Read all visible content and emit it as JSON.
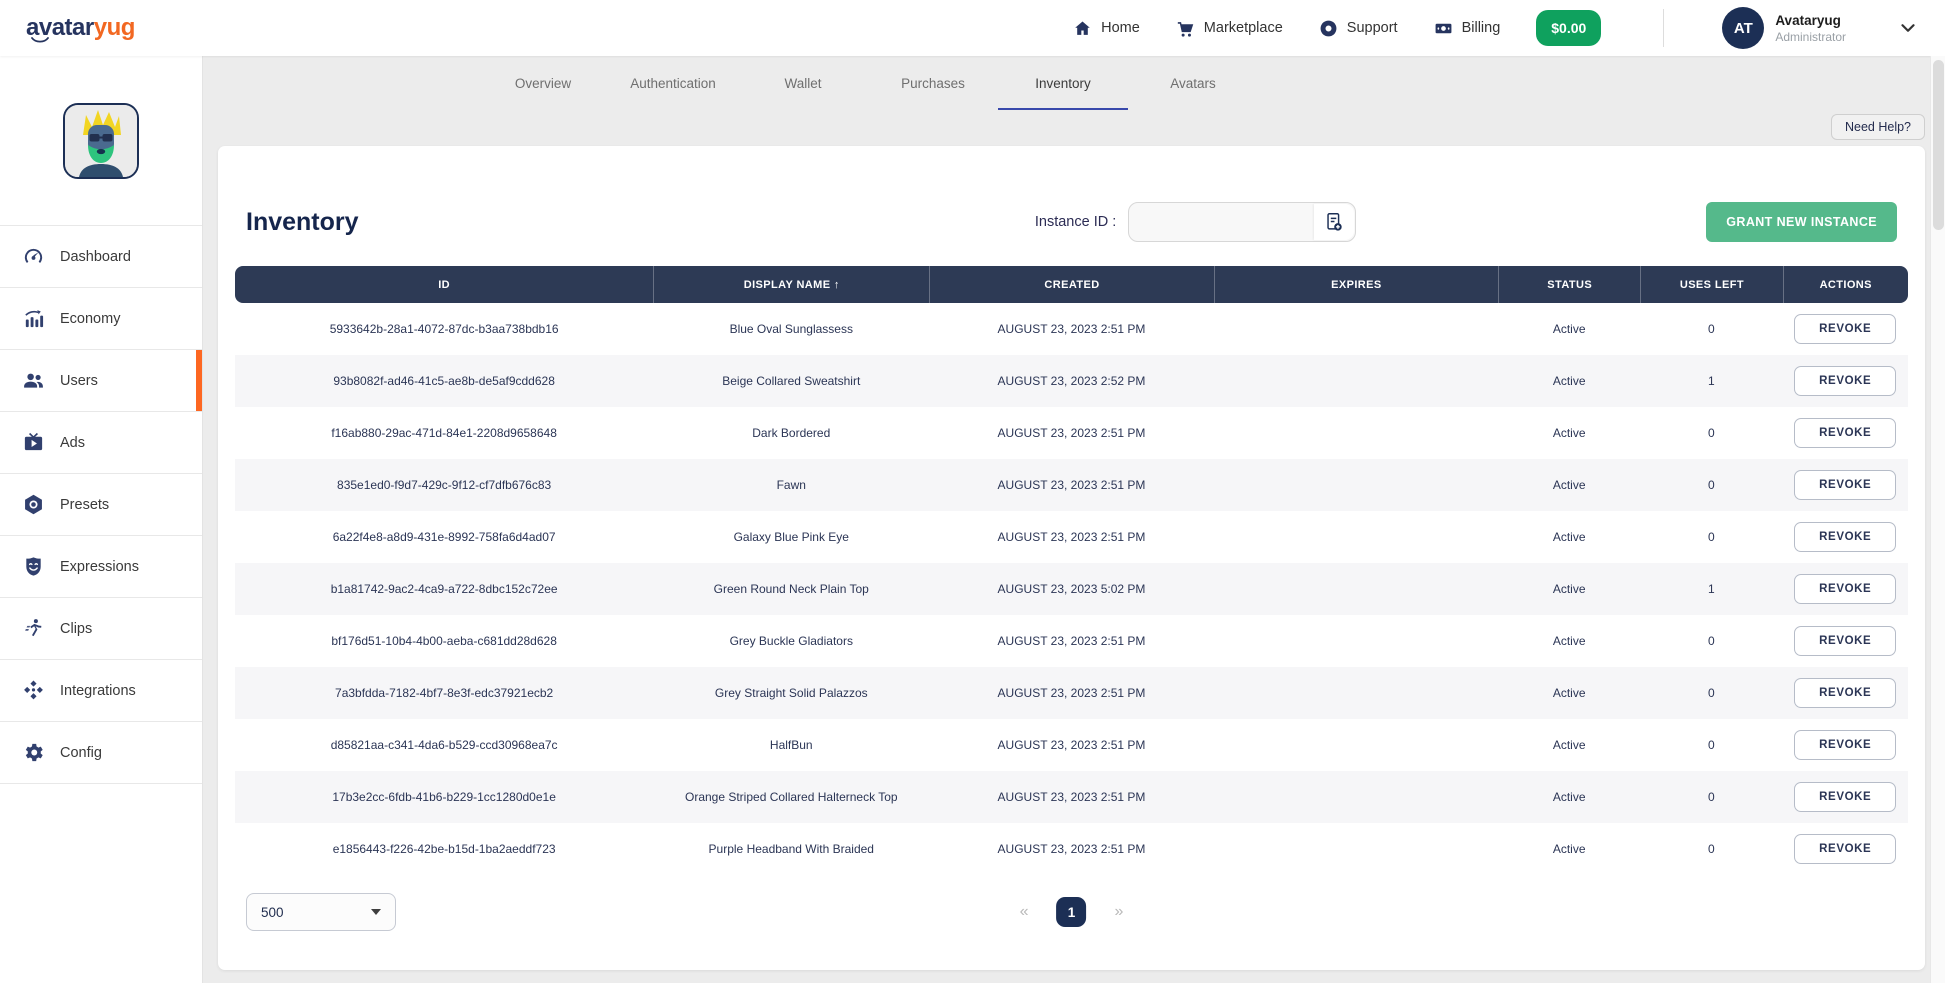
{
  "header": {
    "logo": {
      "primary": "avatar",
      "secondary": "yug"
    },
    "nav": [
      {
        "label": "Home",
        "icon": "home"
      },
      {
        "label": "Marketplace",
        "icon": "cart"
      },
      {
        "label": "Support",
        "icon": "life-ring"
      },
      {
        "label": "Billing",
        "icon": "banknote"
      }
    ],
    "balance": "$0.00",
    "user": {
      "initials": "AT",
      "name": "Avataryug",
      "role": "Administrator"
    }
  },
  "tabs": [
    {
      "label": "Overview",
      "active": false
    },
    {
      "label": "Authentication",
      "active": false
    },
    {
      "label": "Wallet",
      "active": false
    },
    {
      "label": "Purchases",
      "active": false
    },
    {
      "label": "Inventory",
      "active": true
    },
    {
      "label": "Avatars",
      "active": false
    }
  ],
  "sidebar": {
    "items": [
      {
        "label": "Dashboard",
        "icon": "gauge",
        "active": false
      },
      {
        "label": "Economy",
        "icon": "bar-chart",
        "active": false
      },
      {
        "label": "Users",
        "icon": "users",
        "active": true
      },
      {
        "label": "Ads",
        "icon": "tv-ads",
        "active": false
      },
      {
        "label": "Presets",
        "icon": "preset-hex",
        "active": false
      },
      {
        "label": "Expressions",
        "icon": "mask",
        "active": false
      },
      {
        "label": "Clips",
        "icon": "runner",
        "active": false
      },
      {
        "label": "Integrations",
        "icon": "modules",
        "active": false
      },
      {
        "label": "Config",
        "icon": "gear",
        "active": false
      }
    ]
  },
  "page": {
    "need_help": "Need Help?",
    "title": "Inventory",
    "instance_label": "Instance ID :",
    "grant_button": "GRANT NEW INSTANCE"
  },
  "table": {
    "columns": [
      "ID",
      "DISPLAY NAME ↑",
      "CREATED",
      "EXPIRES",
      "STATUS",
      "USES LEFT",
      "ACTIONS"
    ],
    "action_label": "REVOKE",
    "rows": [
      {
        "id": "5933642b-28a1-4072-87dc-b3aa738bdb16",
        "name": "Blue Oval Sunglassess",
        "created": "AUGUST 23, 2023 2:51 PM",
        "expires": "",
        "status": "Active",
        "uses_left": 0
      },
      {
        "id": "93b8082f-ad46-41c5-ae8b-de5af9cdd628",
        "name": "Beige Collared Sweatshirt",
        "created": "AUGUST 23, 2023 2:52 PM",
        "expires": "",
        "status": "Active",
        "uses_left": 1
      },
      {
        "id": "f16ab880-29ac-471d-84e1-2208d9658648",
        "name": "Dark Bordered",
        "created": "AUGUST 23, 2023 2:51 PM",
        "expires": "",
        "status": "Active",
        "uses_left": 0
      },
      {
        "id": "835e1ed0-f9d7-429c-9f12-cf7dfb676c83",
        "name": "Fawn",
        "created": "AUGUST 23, 2023 2:51 PM",
        "expires": "",
        "status": "Active",
        "uses_left": 0
      },
      {
        "id": "6a22f4e8-a8d9-431e-8992-758fa6d4ad07",
        "name": "Galaxy Blue Pink Eye",
        "created": "AUGUST 23, 2023 2:51 PM",
        "expires": "",
        "status": "Active",
        "uses_left": 0
      },
      {
        "id": "b1a81742-9ac2-4ca9-a722-8dbc152c72ee",
        "name": "Green Round Neck Plain Top",
        "created": "AUGUST 23, 2023 5:02 PM",
        "expires": "",
        "status": "Active",
        "uses_left": 1
      },
      {
        "id": "bf176d51-10b4-4b00-aeba-c681dd28d628",
        "name": "Grey Buckle Gladiators",
        "created": "AUGUST 23, 2023 2:51 PM",
        "expires": "",
        "status": "Active",
        "uses_left": 0
      },
      {
        "id": "7a3bfdda-7182-4bf7-8e3f-edc37921ecb2",
        "name": "Grey Straight Solid Palazzos",
        "created": "AUGUST 23, 2023 2:51 PM",
        "expires": "",
        "status": "Active",
        "uses_left": 0
      },
      {
        "id": "d85821aa-c341-4da6-b529-ccd30968ea7c",
        "name": "HalfBun",
        "created": "AUGUST 23, 2023 2:51 PM",
        "expires": "",
        "status": "Active",
        "uses_left": 0
      },
      {
        "id": "17b3e2cc-6fdb-41b6-b229-1cc1280d0e1e",
        "name": "Orange Striped Collared Halterneck Top",
        "created": "AUGUST 23, 2023 2:51 PM",
        "expires": "",
        "status": "Active",
        "uses_left": 0
      },
      {
        "id": "e1856443-f226-42be-b15d-1ba2aeddf723",
        "name": "Purple Headband With Braided",
        "created": "AUGUST 23, 2023 2:51 PM",
        "expires": "",
        "status": "Active",
        "uses_left": 0
      }
    ]
  },
  "footer": {
    "page_size": "500",
    "prev": "«",
    "page": "1",
    "next": "»"
  },
  "colors": {
    "navy": "#1e2a4a",
    "orange": "#f26822",
    "green_badge": "#0fa15e",
    "green_button": "#55b98b",
    "table_header": "#2d3a55",
    "tab_underline": "#3949ab"
  }
}
